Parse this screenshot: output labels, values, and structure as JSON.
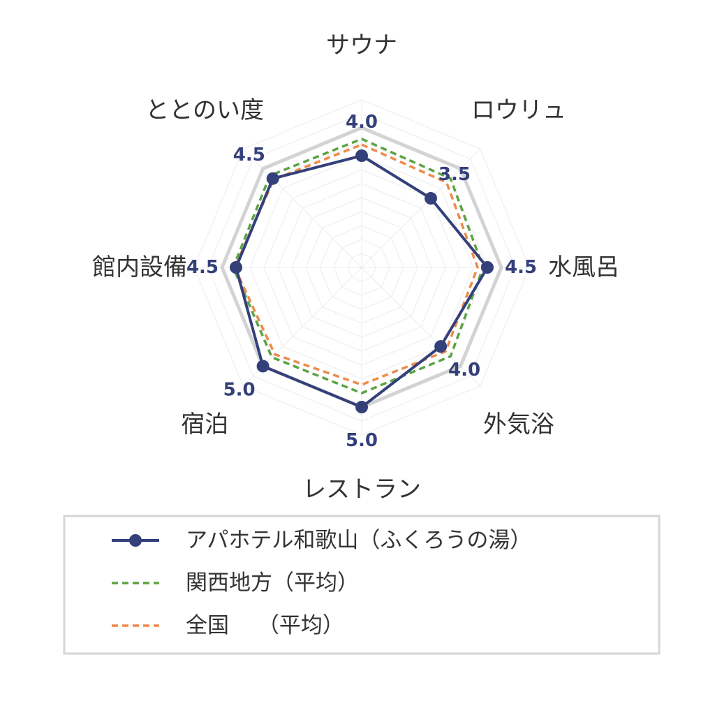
{
  "chart_data": {
    "type": "radar",
    "axes": [
      "サウナ",
      "ロウリュ",
      "水風呂",
      "外気浴",
      "レストラン",
      "宿泊",
      "館内設備",
      "ととのい度"
    ],
    "range": [
      0,
      5
    ],
    "grid": true,
    "legend_position": "bottom",
    "series": [
      {
        "name": "アパホテル和歌山（ふくろうの湯）",
        "values": [
          4.0,
          3.5,
          4.5,
          4.0,
          5.0,
          5.0,
          4.5,
          4.5
        ],
        "value_labels": [
          "4.0",
          "3.5",
          "4.5",
          "4.0",
          "5.0",
          "5.0",
          "4.5",
          "4.5"
        ],
        "color": "#34407a",
        "style": "solid-marker"
      },
      {
        "name": "関西地方（平均）",
        "values": [
          4.6,
          4.5,
          4.35,
          4.5,
          4.5,
          4.55,
          4.6,
          4.65
        ],
        "color": "#5ba344",
        "style": "dashed"
      },
      {
        "name": "全国　 （平均）",
        "values": [
          4.4,
          4.3,
          4.15,
          4.25,
          4.2,
          4.4,
          4.55,
          4.45
        ],
        "color": "#ee8a4a",
        "style": "dashed"
      }
    ],
    "reference_ring": {
      "value": 5.0,
      "color": "#d3d3d3"
    }
  }
}
